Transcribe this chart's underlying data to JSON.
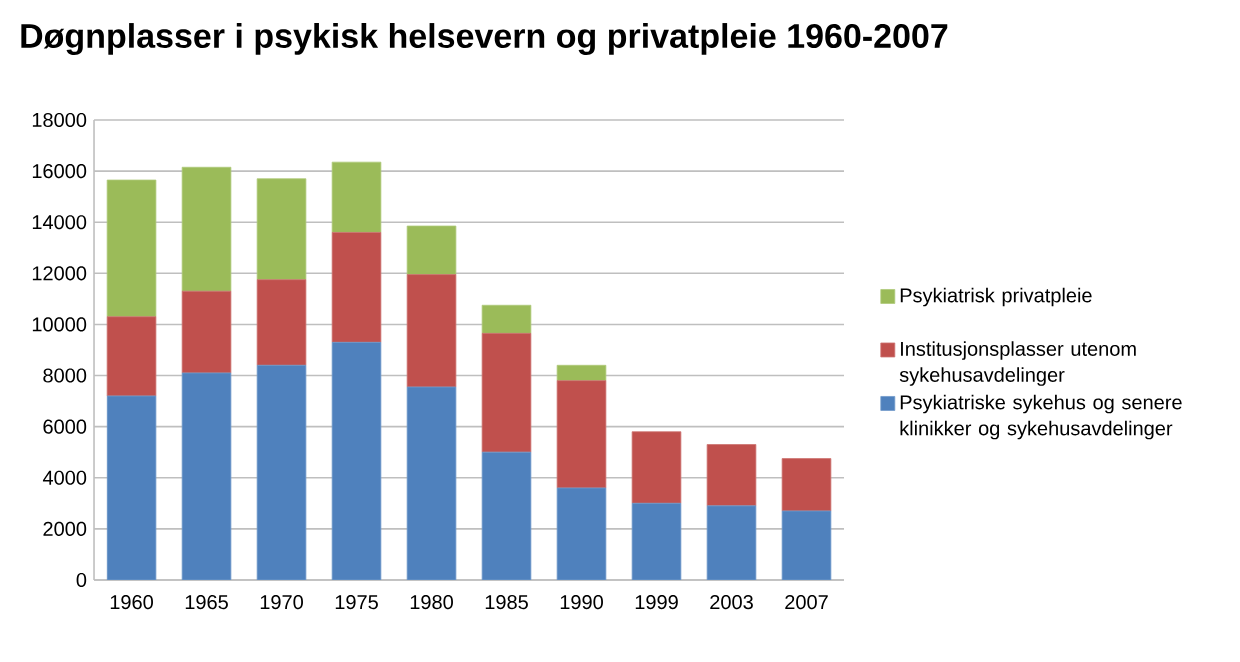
{
  "chart_data": {
    "type": "bar",
    "stacked": true,
    "title": "Døgnplasser i psykisk helsevern og privatpleie 1960-2007",
    "categories": [
      "1960",
      "1965",
      "1970",
      "1975",
      "1980",
      "1985",
      "1990",
      "1999",
      "2003",
      "2007"
    ],
    "series": [
      {
        "name": "Psykiatriske sykehus og senere klinikker og sykehusavdelinger",
        "color": "#4f81bd",
        "values": [
          7200,
          8100,
          8400,
          9300,
          7550,
          5000,
          3600,
          3000,
          2900,
          2700
        ]
      },
      {
        "name": "Institusjonsplasser utenom sykehusavdelinger",
        "color": "#c0504d",
        "values": [
          3100,
          3200,
          3350,
          4300,
          4400,
          4650,
          4200,
          2800,
          2400,
          2050
        ]
      },
      {
        "name": "Psykiatrisk privatpleie",
        "color": "#9bbb59",
        "values": [
          5350,
          4850,
          3950,
          2750,
          1900,
          1100,
          600,
          null,
          null,
          null
        ]
      }
    ],
    "ylim": [
      0,
      18000
    ],
    "yticks": [
      0,
      2000,
      4000,
      6000,
      8000,
      10000,
      12000,
      14000,
      16000,
      18000
    ],
    "grid": "y",
    "legend": "right"
  }
}
